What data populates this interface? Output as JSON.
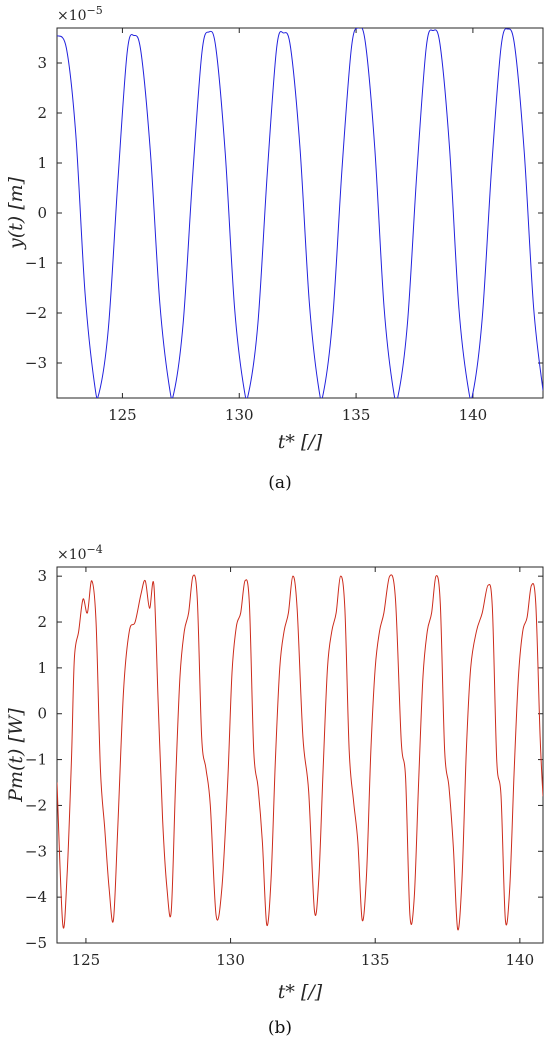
{
  "chart_data": [
    {
      "type": "line",
      "caption": "(a)",
      "multiplier": "×10",
      "multiplier_exp": "−5",
      "xlabel": "t* [/]",
      "ylabel": "y(t) [m]",
      "xlim": [
        122.2,
        143
      ],
      "ylim": [
        -3.7,
        3.7
      ],
      "xticks": [
        125,
        130,
        135,
        140
      ],
      "yticks": [
        -3,
        -2,
        -1,
        0,
        1,
        2,
        3
      ],
      "color": "#2222dd",
      "series": [
        {
          "x": [
            122.2,
            122.6,
            123.0,
            123.4,
            123.8,
            124.0,
            124.4,
            124.8,
            125.2,
            125.5,
            125.8,
            126.2,
            126.6,
            127.0,
            127.2,
            127.6,
            128.0,
            128.4,
            128.7,
            129.0,
            129.4,
            129.8,
            130.2,
            130.4,
            130.8,
            131.2,
            131.6,
            131.9,
            132.2,
            132.6,
            133.0,
            133.4,
            133.6,
            134.0,
            134.4,
            134.8,
            135.1,
            135.4,
            135.8,
            136.2,
            136.6,
            136.8,
            137.2,
            137.6,
            138.0,
            138.3,
            138.6,
            139.0,
            139.4,
            139.8,
            140.0,
            140.4,
            140.8,
            141.2,
            141.5,
            141.8,
            142.2,
            142.6,
            143.0
          ],
          "y": [
            3.55,
            3.3,
            1.6,
            -1.6,
            -3.4,
            -3.6,
            -2.3,
            0.6,
            3.2,
            3.55,
            3.2,
            1.2,
            -1.8,
            -3.45,
            -3.6,
            -2.2,
            0.7,
            3.2,
            3.62,
            3.3,
            1.2,
            -1.9,
            -3.5,
            -3.6,
            -2.2,
            0.8,
            3.3,
            3.6,
            3.3,
            1.3,
            -1.8,
            -3.5,
            -3.6,
            -2.1,
            0.9,
            3.3,
            3.7,
            3.4,
            1.3,
            -1.9,
            -3.55,
            -3.65,
            -2.2,
            0.8,
            3.3,
            3.65,
            3.35,
            1.3,
            -1.9,
            -3.5,
            -3.6,
            -2.1,
            0.9,
            3.3,
            3.68,
            3.3,
            1.2,
            -1.9,
            -3.55
          ]
        }
      ]
    },
    {
      "type": "line",
      "caption": "(b)",
      "multiplier": "×10",
      "multiplier_exp": "−4",
      "xlabel": "t* [/]",
      "ylabel": "Pm(t) [W]",
      "xlim": [
        124,
        140.8
      ],
      "ylim": [
        -5,
        3.2
      ],
      "xticks": [
        125,
        130,
        135,
        140
      ],
      "yticks": [
        -5,
        -4,
        -3,
        -2,
        -1,
        0,
        1,
        2,
        3
      ],
      "color": "#cc2b1b",
      "series": [
        {
          "x": [
            124.0,
            124.2,
            124.35,
            124.5,
            124.6,
            124.75,
            124.9,
            125.05,
            125.2,
            125.35,
            125.5,
            125.65,
            125.8,
            125.95,
            126.1,
            126.3,
            126.5,
            126.7,
            126.9,
            127.05,
            127.2,
            127.35,
            127.5,
            127.65,
            127.8,
            127.95,
            128.1,
            128.25,
            128.4,
            128.55,
            128.7,
            128.85,
            129.0,
            129.15,
            129.3,
            129.5,
            129.7,
            129.9,
            130.05,
            130.2,
            130.35,
            130.5,
            130.65,
            130.8,
            130.95,
            131.1,
            131.25,
            131.4,
            131.55,
            131.7,
            131.85,
            132.0,
            132.15,
            132.3,
            132.5,
            132.7,
            132.9,
            133.05,
            133.2,
            133.35,
            133.5,
            133.65,
            133.8,
            133.95,
            134.1,
            134.25,
            134.4,
            134.55,
            134.7,
            134.85,
            135.0,
            135.15,
            135.3,
            135.5,
            135.7,
            135.9,
            136.05,
            136.2,
            136.35,
            136.5,
            136.65,
            136.8,
            136.95,
            137.1,
            137.25,
            137.4,
            137.55,
            137.7,
            137.85,
            138.0,
            138.15,
            138.3,
            138.5,
            138.7,
            138.9,
            139.05,
            139.2,
            139.35,
            139.5,
            139.65,
            139.8,
            139.95,
            140.1,
            140.25,
            140.4,
            140.55,
            140.7,
            140.8
          ],
          "y": [
            -1.5,
            -4.6,
            -3.5,
            -1.0,
            1.2,
            1.8,
            2.5,
            2.2,
            2.9,
            2.0,
            -1.2,
            -2.5,
            -3.8,
            -4.5,
            -2.5,
            0.5,
            1.8,
            2.0,
            2.6,
            2.9,
            2.3,
            2.8,
            0.2,
            -2.3,
            -3.8,
            -4.3,
            -1.5,
            0.8,
            1.8,
            2.2,
            3.0,
            2.5,
            -0.5,
            -1.2,
            -2.0,
            -4.4,
            -3.8,
            -1.5,
            0.9,
            1.9,
            2.2,
            2.9,
            2.4,
            -0.8,
            -1.6,
            -2.8,
            -4.6,
            -3.6,
            -1.0,
            1.0,
            1.8,
            2.2,
            3.0,
            2.3,
            -0.5,
            -1.7,
            -4.3,
            -3.6,
            -1.2,
            1.0,
            1.8,
            2.2,
            3.0,
            2.3,
            -0.8,
            -1.9,
            -2.8,
            -4.5,
            -3.5,
            -0.8,
            1.0,
            1.8,
            2.2,
            3.0,
            2.5,
            -0.6,
            -1.4,
            -4.4,
            -4.0,
            -1.5,
            0.8,
            1.8,
            2.2,
            3.0,
            2.4,
            -0.8,
            -1.6,
            -2.9,
            -4.7,
            -3.6,
            -0.8,
            1.0,
            1.8,
            2.2,
            2.8,
            2.3,
            -1.0,
            -1.8,
            -4.5,
            -3.8,
            -1.3,
            0.8,
            1.8,
            2.1,
            2.8,
            2.4,
            -0.5,
            -1.8
          ]
        }
      ]
    }
  ]
}
